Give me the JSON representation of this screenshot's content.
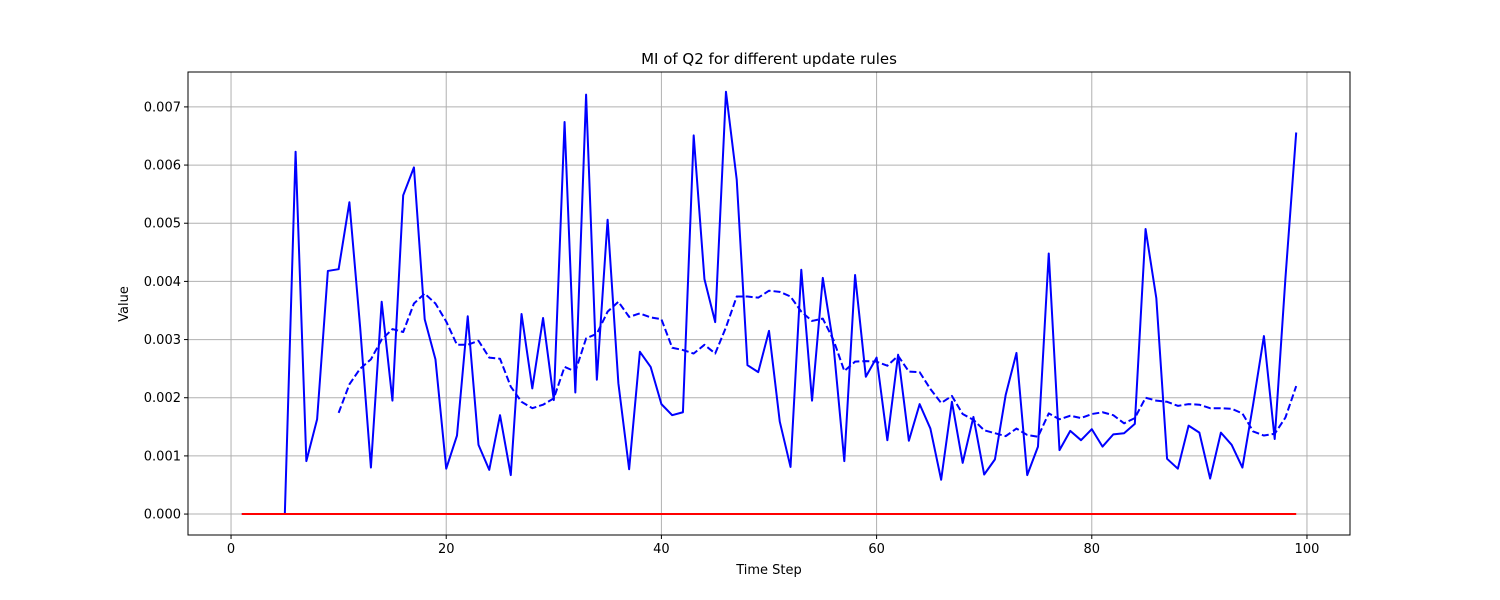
{
  "chart_data": {
    "type": "line",
    "title": "MI of Q2 for different update rules",
    "xlabel": "Time Step",
    "ylabel": "Value",
    "xlim": [
      -4,
      104
    ],
    "ylim": [
      -0.00036,
      0.0076
    ],
    "xticks": [
      0,
      20,
      40,
      60,
      80,
      100
    ],
    "yticks": [
      0.0,
      0.001,
      0.002,
      0.003,
      0.004,
      0.005,
      0.006,
      0.007
    ],
    "ytick_labels": [
      "0.000",
      "0.001",
      "0.002",
      "0.003",
      "0.004",
      "0.005",
      "0.006",
      "0.007"
    ],
    "grid": true,
    "series": [
      {
        "color": "#0000ff",
        "style": "solid",
        "x": [
          1,
          2,
          3,
          4,
          5,
          6,
          7,
          8,
          9,
          10,
          11,
          12,
          13,
          14,
          15,
          16,
          17,
          18,
          19,
          20,
          21,
          22,
          23,
          24,
          25,
          26,
          27,
          28,
          29,
          30,
          31,
          32,
          33,
          34,
          35,
          36,
          37,
          38,
          39,
          40,
          41,
          42,
          43,
          44,
          45,
          46,
          47,
          48,
          49,
          50,
          51,
          52,
          53,
          54,
          55,
          56,
          57,
          58,
          59,
          60,
          61,
          62,
          63,
          64,
          65,
          66,
          67,
          68,
          69,
          70,
          71,
          72,
          73,
          74,
          75,
          76,
          77,
          78,
          79,
          80,
          81,
          82,
          83,
          84,
          85,
          86,
          87,
          88,
          89,
          90,
          91,
          92,
          93,
          94,
          95,
          96,
          97,
          98,
          99
        ],
        "y": [
          0,
          0,
          0,
          0,
          0,
          0.00623,
          0.00091,
          0.00163,
          0.00418,
          0.00421,
          0.00536,
          0.00321,
          0.0008,
          0.00365,
          0.00195,
          0.00548,
          0.00596,
          0.00335,
          0.00266,
          0.00078,
          0.00135,
          0.0034,
          0.00119,
          0.00076,
          0.0017,
          0.00067,
          0.00344,
          0.00216,
          0.00337,
          0.00196,
          0.00674,
          0.00209,
          0.00721,
          0.00231,
          0.00506,
          0.00225,
          0.00077,
          0.00279,
          0.00253,
          0.00189,
          0.0017,
          0.00175,
          0.00651,
          0.00404,
          0.0033,
          0.00726,
          0.00575,
          0.00256,
          0.00244,
          0.00315,
          0.00159,
          0.00081,
          0.0042,
          0.00195,
          0.00406,
          0.00289,
          0.00091,
          0.00411,
          0.00236,
          0.00269,
          0.00127,
          0.00274,
          0.00126,
          0.00189,
          0.00147,
          0.00059,
          0.00193,
          0.00088,
          0.00167,
          0.00068,
          0.00094,
          0.00205,
          0.00277,
          0.00067,
          0.00116,
          0.00448,
          0.0011,
          0.00143,
          0.00127,
          0.00146,
          0.00116,
          0.00137,
          0.00139,
          0.00155,
          0.0049,
          0.00371,
          0.00095,
          0.00078,
          0.00152,
          0.0014,
          0.00061,
          0.0014,
          0.00119,
          0.0008,
          0.00189,
          0.00306,
          0.00129,
          0.00406,
          0.00656
        ]
      },
      {
        "color": "#0000ff",
        "style": "dashed",
        "x": [
          10,
          11,
          12,
          13,
          14,
          15,
          16,
          17,
          18,
          19,
          20,
          21,
          22,
          23,
          24,
          25,
          26,
          27,
          28,
          29,
          30,
          31,
          32,
          33,
          34,
          35,
          36,
          37,
          38,
          39,
          40,
          41,
          42,
          43,
          44,
          45,
          46,
          47,
          48,
          49,
          50,
          51,
          52,
          53,
          54,
          55,
          56,
          57,
          58,
          59,
          60,
          61,
          62,
          63,
          64,
          65,
          66,
          67,
          68,
          69,
          70,
          71,
          72,
          73,
          74,
          75,
          76,
          77,
          78,
          79,
          80,
          81,
          82,
          83,
          84,
          85,
          86,
          87,
          88,
          89,
          90,
          91,
          92,
          93,
          94,
          95,
          96,
          97,
          98,
          99
        ],
        "y": [
          0.00174,
          0.00223,
          0.0025,
          0.00266,
          0.003,
          0.00318,
          0.00313,
          0.00362,
          0.00379,
          0.00362,
          0.00331,
          0.00291,
          0.00291,
          0.00298,
          0.00269,
          0.00267,
          0.00219,
          0.00193,
          0.00182,
          0.00188,
          0.00199,
          0.00253,
          0.00245,
          0.00302,
          0.0031,
          0.00348,
          0.00365,
          0.00339,
          0.00345,
          0.00338,
          0.00335,
          0.00286,
          0.00282,
          0.00276,
          0.00291,
          0.00276,
          0.00321,
          0.00374,
          0.00374,
          0.00372,
          0.00384,
          0.00382,
          0.00374,
          0.00348,
          0.00332,
          0.00336,
          0.00299,
          0.00246,
          0.00262,
          0.00263,
          0.00262,
          0.00255,
          0.00272,
          0.00245,
          0.00244,
          0.00215,
          0.00191,
          0.00203,
          0.00172,
          0.00162,
          0.00144,
          0.00139,
          0.00134,
          0.00147,
          0.00136,
          0.00133,
          0.00173,
          0.00163,
          0.00169,
          0.00165,
          0.00172,
          0.00175,
          0.0017,
          0.00156,
          0.00165,
          0.002,
          0.00195,
          0.00193,
          0.00186,
          0.00189,
          0.00188,
          0.00182,
          0.00182,
          0.00181,
          0.00173,
          0.00142,
          0.00135,
          0.00138,
          0.00166,
          0.0022
        ]
      },
      {
        "color": "#ff0000",
        "style": "solid",
        "x": [
          1,
          99
        ],
        "y": [
          0,
          0
        ]
      }
    ]
  }
}
